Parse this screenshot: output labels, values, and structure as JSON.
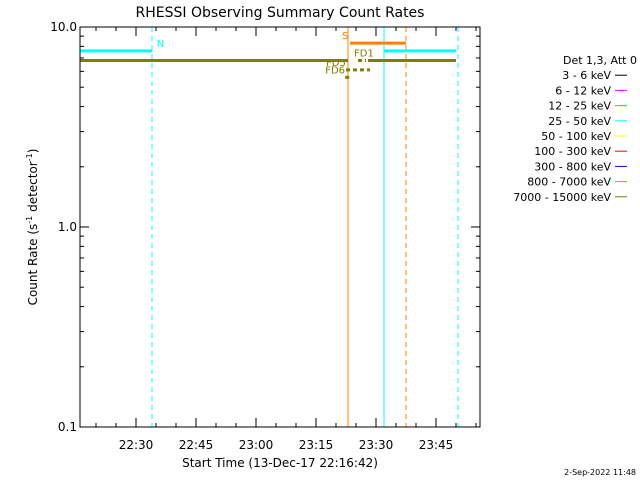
{
  "chart_data": {
    "type": "line",
    "title": "RHESSI Observing Summary Count Rates",
    "xlabel": "Start Time (13-Dec-17 22:16:42)",
    "ylabel_main": "Count Rate (s",
    "ylabel_sup1": "-1",
    "ylabel_mid": " detector",
    "ylabel_sup2": "-1",
    "ylabel_end": ")",
    "y_scale": "log",
    "ylim": [
      0.1,
      10.0
    ],
    "xlim_min": [
      0,
      81
    ],
    "x_ticks": [
      {
        "min": 14,
        "label": "22:30"
      },
      {
        "min": 29,
        "label": "22:45"
      },
      {
        "min": 44,
        "label": "23:00"
      },
      {
        "min": 59,
        "label": "23:15"
      },
      {
        "min": 74,
        "label": "23:30"
      },
      {
        "min": 89,
        "label": "23:45"
      }
    ],
    "y_ticks": [
      {
        "value": 0.1,
        "label": "0.1"
      },
      {
        "value": 1.0,
        "label": "1.0"
      },
      {
        "value": 10.0,
        "label": "10.0"
      }
    ],
    "legend": {
      "placement": "right",
      "header": "Det 1,3, Att 0",
      "entries": [
        {
          "label": "3 - 6 keV",
          "color": "#000000"
        },
        {
          "label": "6 - 12 keV",
          "color": "#ff00ff"
        },
        {
          "label": "12 - 25 keV",
          "color": "#00ff00"
        },
        {
          "label": "25 - 50 keV",
          "color": "#00ffff"
        },
        {
          "label": "50 - 100 keV",
          "color": "#ffff00"
        },
        {
          "label": "100 - 300 keV",
          "color": "#ff0000"
        },
        {
          "label": "300 - 800 keV",
          "color": "#0000ff"
        },
        {
          "label": "800 - 7000 keV",
          "color": "#ff8000"
        },
        {
          "label": "7000 - 15000 keV",
          "color": "#808000"
        }
      ]
    },
    "series": [
      {
        "label": "25 - 50 keV",
        "color": "#00ffff",
        "segments": [
          [
            0,
            18,
            7.6
          ],
          [
            76,
            94,
            7.6
          ]
        ]
      },
      {
        "label": "7000 - 15000 keV",
        "color": "#808000",
        "segments": [
          [
            0,
            67,
            6.8
          ],
          [
            72,
            94,
            6.8
          ]
        ]
      },
      {
        "label": "800 - 7000 keV",
        "color": "#ff8000",
        "segments": [
          [
            67.5,
            81.5,
            8.3
          ]
        ]
      }
    ],
    "vlines": [
      {
        "x": 0,
        "color": "#00ffff",
        "style": "solid"
      },
      {
        "x": 18,
        "color": "#00ffff",
        "style": "dashed"
      },
      {
        "x": 67,
        "color": "#ff8000",
        "style": "solid"
      },
      {
        "x": 76,
        "color": "#00ffff",
        "style": "solid"
      },
      {
        "x": 81.5,
        "color": "#ff8000",
        "style": "dashed"
      },
      {
        "x": 94.5,
        "color": "#00ffff",
        "style": "dashed"
      }
    ],
    "annotations": [
      {
        "text": "N",
        "x": 19.2,
        "y": 7.6,
        "color": "#00ffff"
      },
      {
        "text": "S",
        "x": 65.5,
        "y": 8.3,
        "color": "#ff8000"
      },
      {
        "text": "FD1",
        "x": 68.5,
        "y": 6.8,
        "color": "#808000",
        "mark": {
          "x1": 69.5,
          "x2": 71.5,
          "y": 6.8,
          "style": "dashed"
        }
      },
      {
        "text": "FD5",
        "x": 61.5,
        "y": 6.1,
        "color": "#808000",
        "mark": {
          "x1": 66.5,
          "x2": 72.5,
          "y": 6.1,
          "style": "dashed"
        }
      },
      {
        "text": "FD6",
        "x": 61.3,
        "y": 5.6,
        "color": "#808000",
        "mark": {
          "x1": 66.3,
          "x2": 67.3,
          "y": 5.6,
          "style": "dashed"
        }
      }
    ]
  },
  "footer": {
    "date_stamp": "2-Sep-2022 11:48"
  }
}
